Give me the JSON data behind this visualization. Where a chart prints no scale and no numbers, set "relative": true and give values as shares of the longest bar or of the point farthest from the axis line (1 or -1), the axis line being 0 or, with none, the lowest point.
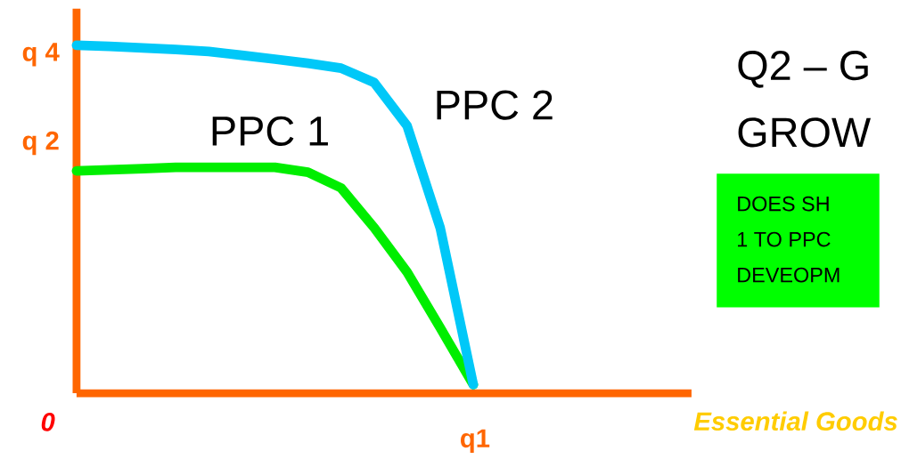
{
  "chart_data": {
    "type": "line",
    "xlabel": "Essential Goods",
    "relative": true,
    "categories": [
      null,
      null,
      null,
      null,
      null,
      null,
      null,
      null,
      null,
      null,
      null,
      null,
      null,
      null,
      null,
      null,
      null,
      null,
      null
    ],
    "legend": false,
    "grid": false,
    "marker": "none",
    "line_style": "solid",
    "series": [
      {
        "name": "PPC 1",
        "color": "#00ee00",
        "values": [
          0.639,
          0.642,
          0.645,
          0.649,
          0.649,
          0.649,
          0.649,
          0.635,
          0.59,
          0.476,
          0.348,
          0.188,
          0.025,
          null,
          null,
          null,
          null,
          null,
          null
        ]
      },
      {
        "name": "PPC 2",
        "color": "#00c8f8",
        "values": [
          1,
          0.997,
          0.992,
          0.988,
          0.982,
          0.971,
          0.96,
          0.948,
          0.934,
          0.893,
          0.768,
          0.475,
          0.025,
          null,
          null,
          null,
          null,
          null,
          null
        ]
      }
    ],
    "annotations": [
      "0",
      "q1",
      "q 2",
      "q 4",
      "Q2 – G",
      "GROW",
      "DOES SH",
      "1 TO PPC",
      "DEVEOPM"
    ]
  }
}
